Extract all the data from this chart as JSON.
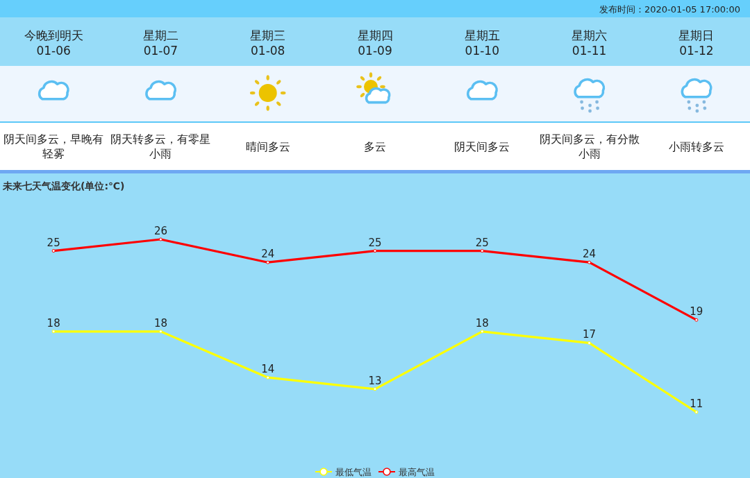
{
  "chart_data": {
    "type": "line",
    "title": "未来七天气温变化(单位:℃)",
    "categories": [
      "今晚到明天\n01-06",
      "星期二\n01-07",
      "星期三\n01-08",
      "星期四\n01-09",
      "星期五\n01-10",
      "星期六\n01-11",
      "星期日\n01-12"
    ],
    "series": [
      {
        "name": "最低气温",
        "color": "#ffff00",
        "values": [
          18,
          18,
          14,
          13,
          18,
          17,
          11
        ]
      },
      {
        "name": "最高气温",
        "color": "#ff0000",
        "values": [
          25,
          26,
          24,
          25,
          25,
          24,
          19
        ]
      }
    ],
    "data_labels": true,
    "marker": "circle",
    "line_style": "solid",
    "legend": "bottom",
    "tick_labels": "x",
    "annotations": [
      "发布时间：2020-01-05 17:00:00",
      "阴天间多云，早晚有轻雾",
      "阴天转多云，有零星小雨",
      "晴间多云",
      "多云",
      "阴天间多云",
      "阴天间多云，有分散小雨",
      "小雨转多云"
    ]
  }
}
